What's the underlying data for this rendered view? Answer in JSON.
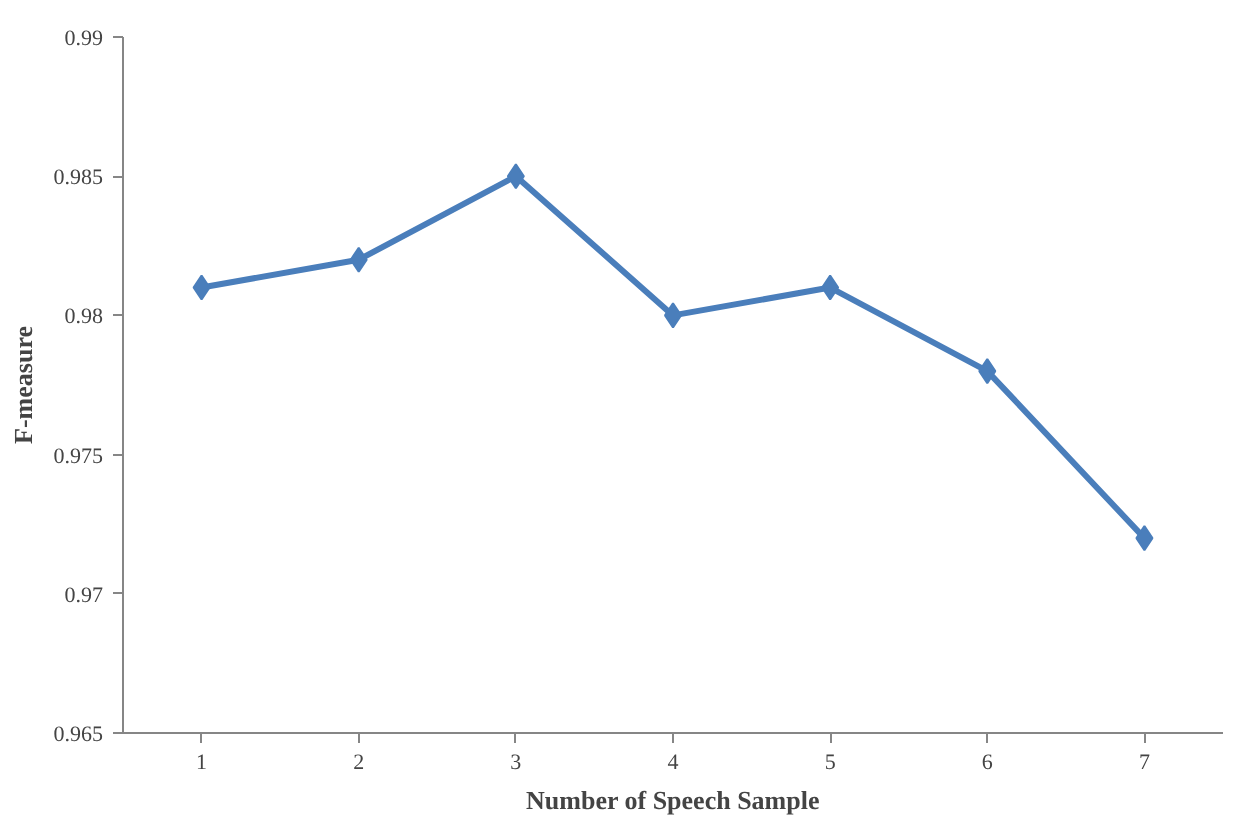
{
  "chart_data": {
    "type": "line",
    "xlabel": "Number of Speech Sample",
    "ylabel": "F-measure",
    "categories": [
      "1",
      "2",
      "3",
      "4",
      "5",
      "6",
      "7"
    ],
    "series": [
      {
        "color": "#4a7ebb",
        "values": [
          0.981,
          0.982,
          0.985,
          0.98,
          0.981,
          0.978,
          0.972
        ]
      }
    ],
    "ylim": [
      0.965,
      0.99
    ],
    "yticks": [
      0.965,
      0.97,
      0.975,
      0.98,
      0.985,
      0.99
    ],
    "grid": false,
    "marker": "diamond",
    "line_style": "solid"
  }
}
